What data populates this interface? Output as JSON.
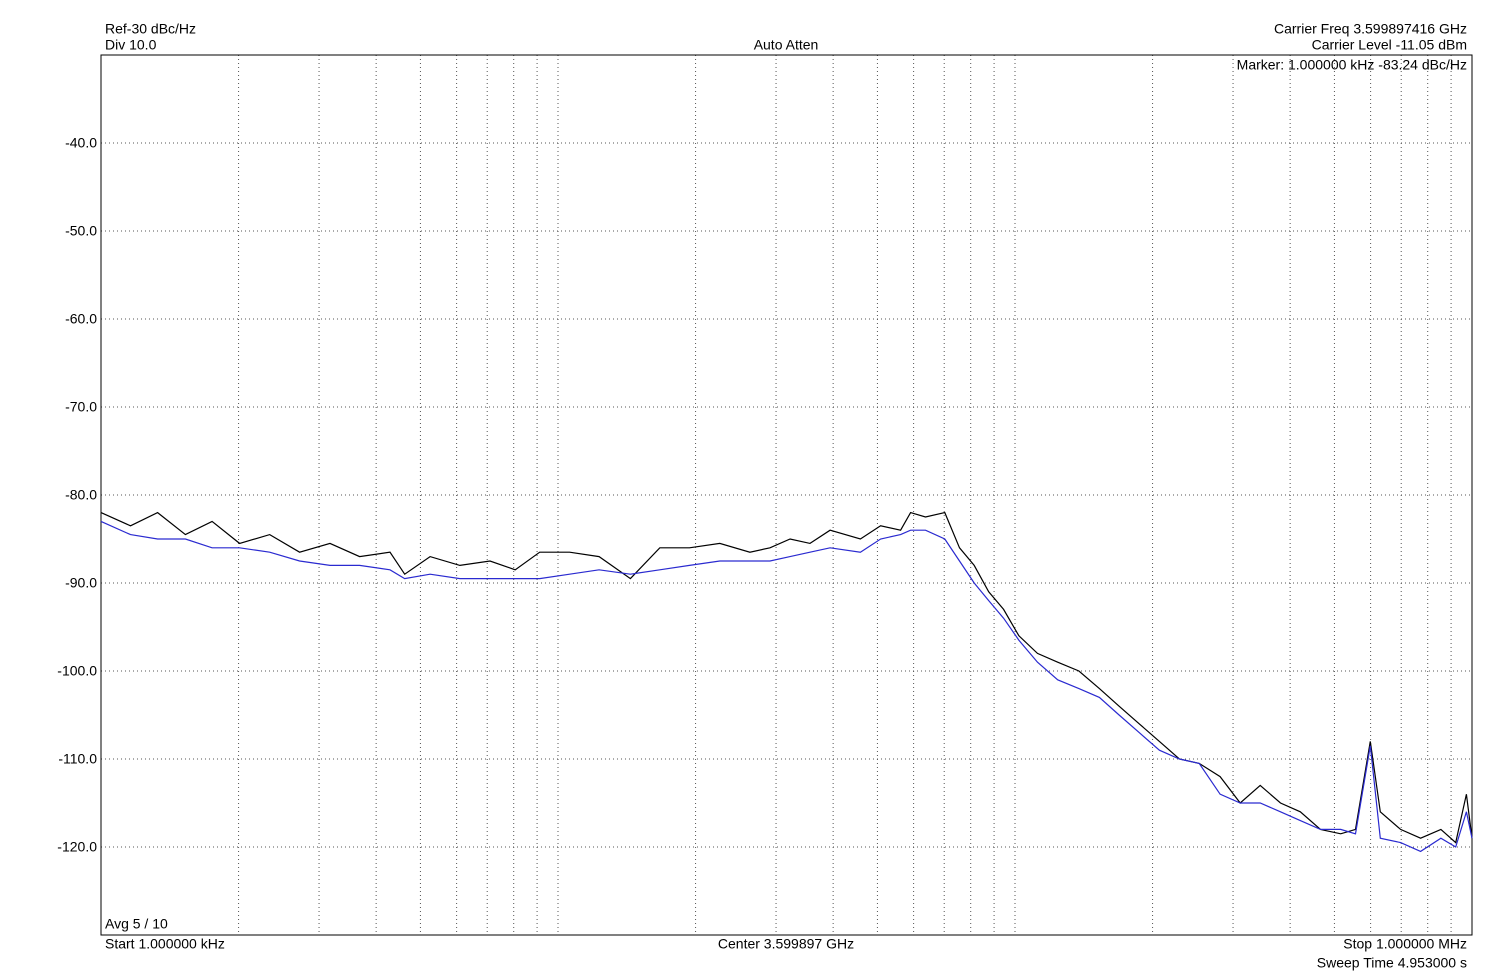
{
  "chart_data": {
    "type": "line",
    "xscale": "log",
    "grid": true,
    "annotations": {
      "ref": "Ref-30 dBc/Hz",
      "div": "Div 10.0",
      "atten": "Auto Atten",
      "carrier_freq": "Carrier Freq 3.599897416 GHz",
      "carrier_level": "Carrier Level -11.05 dBm",
      "marker": "Marker: 1.000000 kHz -83.24 dBc/Hz",
      "avg": "Avg 5 / 10",
      "start": "Start 1.000000 kHz",
      "center": "Center 3.599897 GHz",
      "stop": "Stop 1.000000 MHz",
      "sweep": "Sweep Time 4.953000 s"
    },
    "xlim": [
      1000,
      1000000
    ],
    "ylim": [
      -130,
      -30
    ],
    "xticks": [
      1000,
      2000,
      3000,
      4000,
      5000,
      6000,
      7000,
      8000,
      9000,
      10000,
      20000,
      30000,
      40000,
      50000,
      60000,
      70000,
      80000,
      90000,
      100000,
      200000,
      300000,
      400000,
      500000,
      600000,
      700000,
      800000,
      900000,
      1000000
    ],
    "yticks": [
      {
        "value": -40,
        "label": "-40.0"
      },
      {
        "value": -50,
        "label": "-50.0"
      },
      {
        "value": -60,
        "label": "-60.0"
      },
      {
        "value": -70,
        "label": "-70.0"
      },
      {
        "value": -80,
        "label": "-80.0"
      },
      {
        "value": -90,
        "label": "-90.0"
      },
      {
        "value": -100,
        "label": "-100.0"
      },
      {
        "value": -110,
        "label": "-110.0"
      },
      {
        "value": -120,
        "label": "-120.0"
      }
    ],
    "x": [
      1000,
      1160,
      1330,
      1530,
      1750,
      2010,
      2340,
      2720,
      3170,
      3680,
      4290,
      4620,
      5250,
      6100,
      7100,
      8060,
      9120,
      10600,
      12300,
      14400,
      16700,
      19400,
      22600,
      26300,
      29100,
      32200,
      35600,
      39400,
      45900,
      50800,
      56200,
      59100,
      63700,
      70200,
      75600,
      81400,
      87600,
      94400,
      102000,
      112000,
      124000,
      138000,
      153000,
      169000,
      187000,
      207000,
      229000,
      253000,
      281000,
      311000,
      344000,
      381000,
      421000,
      466000,
      516000,
      556000,
      599000,
      630000,
      698000,
      772000,
      855000,
      921000,
      972000,
      1000000
    ],
    "series": [
      {
        "color": "#000000",
        "values": [
          -82,
          -83.5,
          -82,
          -84.5,
          -83,
          -85.5,
          -84.5,
          -86.5,
          -85.5,
          -87,
          -86.5,
          -89,
          -87,
          -88,
          -87.5,
          -88.5,
          -86.5,
          -86.5,
          -87,
          -89.5,
          -86,
          -86,
          -85.5,
          -86.5,
          -86,
          -85,
          -85.5,
          -84,
          -85,
          -83.5,
          -84,
          -82,
          -82.5,
          -82,
          -86,
          -88,
          -91,
          -93,
          -96,
          -98,
          -99,
          -100,
          -102,
          -104,
          -106,
          -108,
          -110,
          -110.5,
          -112,
          -115,
          -113,
          -115,
          -116,
          -118,
          -118.5,
          -118,
          -108,
          -116,
          -118,
          -119,
          -118,
          -119.5,
          -114,
          -119
        ]
      },
      {
        "color": "#2a2ad0",
        "values": [
          -83,
          -84.5,
          -85,
          -85,
          -86,
          -86,
          -86.5,
          -87.5,
          -88,
          -88,
          -88.5,
          -89.5,
          -89,
          -89.5,
          -89.5,
          -89.5,
          -89.5,
          -89,
          -88.5,
          -89,
          -88.5,
          -88,
          -87.5,
          -87.5,
          -87.5,
          -87,
          -86.5,
          -86,
          -86.5,
          -85,
          -84.5,
          -84,
          -84,
          -85,
          -87.5,
          -90,
          -92,
          -94,
          -96.5,
          -99,
          -101,
          -102,
          -103,
          -105,
          -107,
          -109,
          -110,
          -110.5,
          -114,
          -115,
          -115,
          -116,
          -117,
          -118,
          -118,
          -118.5,
          -108.5,
          -119,
          -119.5,
          -120.5,
          -119,
          -120,
          -116,
          -119
        ]
      }
    ]
  }
}
